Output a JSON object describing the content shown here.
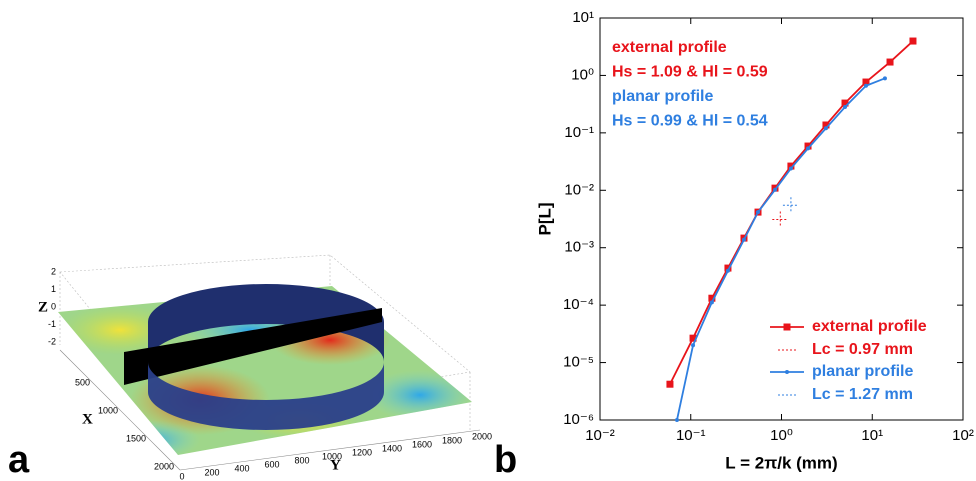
{
  "chart_data": [
    {
      "type": "surface3d",
      "panel_label": "a",
      "xlabel": "X",
      "ylabel": "Y",
      "zlabel": "Z",
      "zticks": [
        2,
        1,
        0,
        -1,
        -2
      ],
      "xticks": [
        500,
        1000,
        1500,
        2000
      ],
      "yticks": [
        0,
        200,
        400,
        600,
        800,
        1000,
        1200,
        1400,
        1600,
        1800,
        2000
      ]
    },
    {
      "type": "line",
      "panel_label": "b",
      "xlabel": "L = 2π/k (mm)",
      "ylabel": "P[L]",
      "xscale": "log",
      "yscale": "log",
      "xlim": [
        0.01,
        100
      ],
      "ylim": [
        1e-06,
        10
      ],
      "xticks": [
        {
          "value": 0.01,
          "label": "10⁻²"
        },
        {
          "value": 0.1,
          "label": "10⁻¹"
        },
        {
          "value": 1,
          "label": "10⁰"
        },
        {
          "value": 10,
          "label": "10¹"
        },
        {
          "value": 100,
          "label": "10²"
        }
      ],
      "yticks": [
        {
          "value": 1e-06,
          "label": "10⁻⁶"
        },
        {
          "value": 1e-05,
          "label": "10⁻⁵"
        },
        {
          "value": 0.0001,
          "label": "10⁻⁴"
        },
        {
          "value": 0.001,
          "label": "10⁻³"
        },
        {
          "value": 0.01,
          "label": "10⁻²"
        },
        {
          "value": 0.1,
          "label": "10⁻¹"
        },
        {
          "value": 1,
          "label": "10⁰"
        },
        {
          "value": 10,
          "label": "10¹"
        }
      ],
      "annotations": [
        {
          "text": "external profile",
          "color": "#e8141b"
        },
        {
          "text": "Hs = 1.09 & Hl = 0.59",
          "color": "#e8141b"
        },
        {
          "text": "planar profile",
          "color": "#2f7fe0"
        },
        {
          "text": "Hs = 0.99 & Hl = 0.54",
          "color": "#2f7fe0"
        }
      ],
      "legend": "lower right",
      "series": [
        {
          "name": "external profile",
          "color": "#e8141b",
          "marker": "square",
          "x": [
            0.059,
            0.106,
            0.171,
            0.257,
            0.386,
            0.551,
            0.848,
            1.27,
            1.96,
            3.09,
            5.01,
            8.53,
            15.7,
            28.1
          ],
          "values": [
            4.2e-06,
            2.66e-05,
            0.000132,
            0.000442,
            0.00147,
            0.00417,
            0.0109,
            0.0264,
            0.0589,
            0.137,
            0.33,
            0.767,
            1.71,
            3.97
          ],
          "lc": {
            "x": 0.97,
            "y": 0.0031,
            "label": "Lc = 0.97 mm"
          }
        },
        {
          "name": "planar profile",
          "color": "#2f7fe0",
          "marker": "dot",
          "x": [
            0.0705,
            0.106,
            0.171,
            0.257,
            0.386,
            0.551,
            0.848,
            1.27,
            1.96,
            3.09,
            5.01,
            8.53,
            13.8
          ],
          "values": [
            1e-06,
            2e-05,
            0.000112,
            0.000398,
            0.00138,
            0.00417,
            0.0102,
            0.024,
            0.0537,
            0.12,
            0.282,
            0.661,
            0.89
          ],
          "lc": {
            "x": 1.27,
            "y": 0.0055,
            "label": "Lc = 1.27 mm"
          }
        }
      ]
    }
  ]
}
